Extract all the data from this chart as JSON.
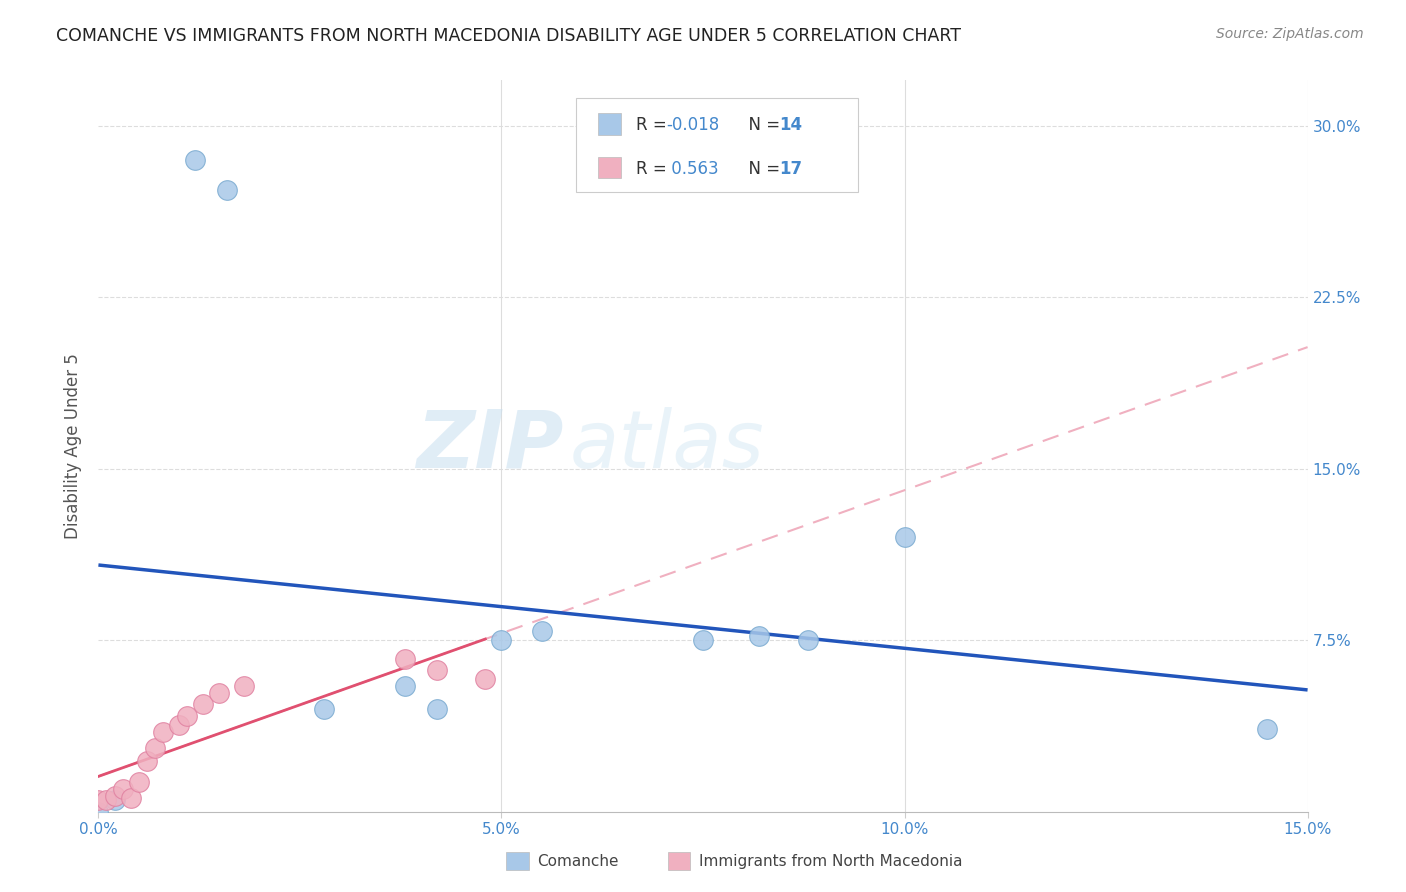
{
  "title": "COMANCHE VS IMMIGRANTS FROM NORTH MACEDONIA DISABILITY AGE UNDER 5 CORRELATION CHART",
  "source": "Source: ZipAtlas.com",
  "ylabel": "Disability Age Under 5",
  "xlabel_comanche": "Comanche",
  "xlabel_macedonia": "Immigrants from North Macedonia",
  "watermark_zip": "ZIP",
  "watermark_atlas": "atlas",
  "xlim": [
    0.0,
    0.15
  ],
  "ylim": [
    0.0,
    0.32
  ],
  "yticks": [
    0.075,
    0.15,
    0.225,
    0.3
  ],
  "ytick_labels": [
    "7.5%",
    "15.0%",
    "22.5%",
    "30.0%"
  ],
  "xticks": [
    0.0,
    0.05,
    0.1,
    0.15
  ],
  "xtick_labels": [
    "0.0%",
    "5.0%",
    "10.0%",
    "15.0%"
  ],
  "comanche_R": "-0.018",
  "comanche_N": "14",
  "macedonia_R": "0.563",
  "macedonia_N": "17",
  "comanche_color": "#a8c8e8",
  "comanche_edge_color": "#7aaad0",
  "comanche_line_color": "#2255bb",
  "macedonia_color": "#f0b0c0",
  "macedonia_edge_color": "#e080a0",
  "macedonia_line_color": "#e05070",
  "comanche_points_x": [
    0.012,
    0.016,
    0.002,
    0.028,
    0.038,
    0.042,
    0.05,
    0.075,
    0.082,
    0.088,
    0.1,
    0.0,
    0.145,
    0.055
  ],
  "comanche_points_y": [
    0.285,
    0.272,
    0.005,
    0.045,
    0.055,
    0.045,
    0.075,
    0.075,
    0.077,
    0.075,
    0.12,
    0.0,
    0.036,
    0.079
  ],
  "macedonia_points_x": [
    0.0,
    0.001,
    0.002,
    0.003,
    0.004,
    0.005,
    0.006,
    0.007,
    0.008,
    0.01,
    0.011,
    0.013,
    0.015,
    0.018,
    0.038,
    0.042,
    0.048
  ],
  "macedonia_points_y": [
    0.005,
    0.005,
    0.007,
    0.01,
    0.006,
    0.013,
    0.022,
    0.028,
    0.035,
    0.038,
    0.042,
    0.047,
    0.052,
    0.055,
    0.067,
    0.062,
    0.058
  ],
  "background_color": "#ffffff",
  "grid_color": "#dddddd"
}
